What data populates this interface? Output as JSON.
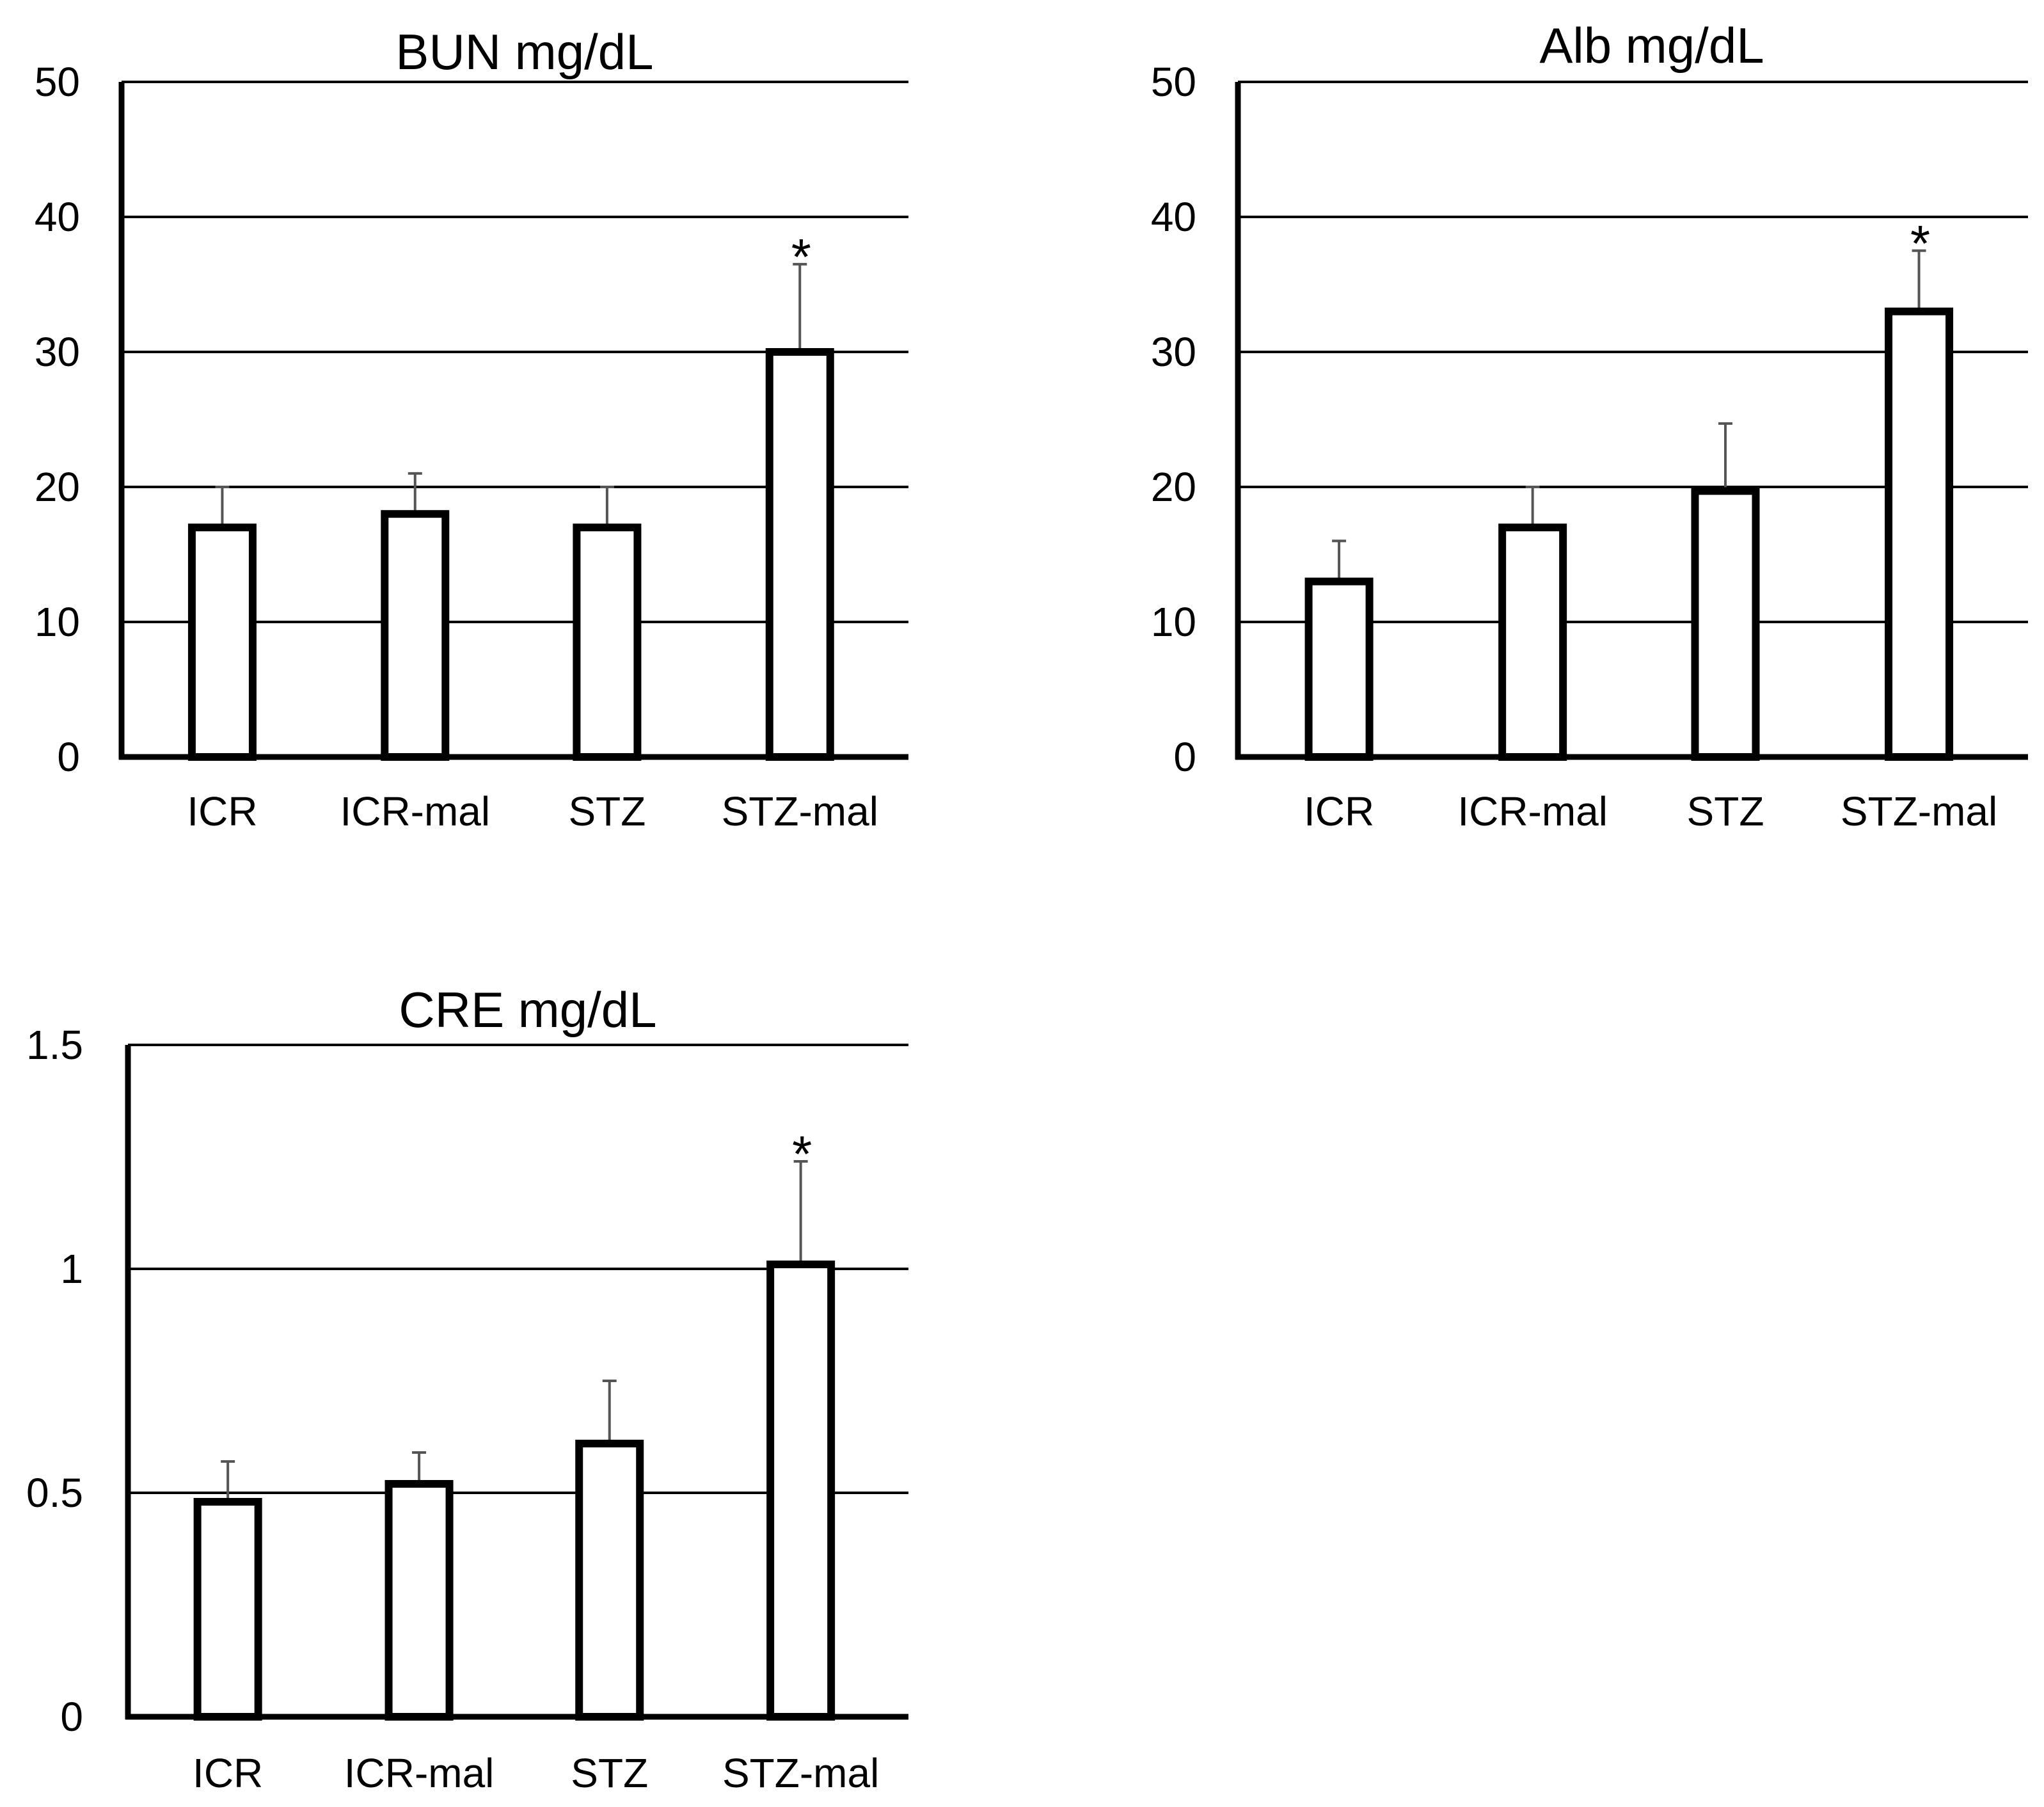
{
  "chart_data": [
    {
      "type": "bar",
      "title": "BUN mg/dL",
      "categories": [
        "ICR",
        "ICR-mal",
        "STZ",
        "STZ-mal"
      ],
      "values": [
        17,
        18,
        17,
        30
      ],
      "errors": [
        3,
        3,
        3,
        6.5
      ],
      "significance": [
        "",
        "",
        "",
        "*"
      ],
      "ylim": [
        0,
        50
      ],
      "yticks": [
        0,
        10,
        20,
        30,
        40,
        50
      ],
      "ytick_labels": [
        "0",
        "10",
        "20",
        "30",
        "40",
        "50"
      ],
      "grid": true,
      "xlabel": "",
      "ylabel": ""
    },
    {
      "type": "bar",
      "title": "Alb mg/dL",
      "categories": [
        "ICR",
        "ICR-mal",
        "STZ",
        "STZ-mal"
      ],
      "values": [
        13,
        17,
        19.7,
        33
      ],
      "errors": [
        3,
        3,
        5,
        4.5
      ],
      "significance": [
        "",
        "",
        "",
        "*"
      ],
      "ylim": [
        0,
        50
      ],
      "yticks": [
        0,
        10,
        20,
        30,
        40,
        50
      ],
      "ytick_labels": [
        "0",
        "10",
        "20",
        "30",
        "40",
        "50"
      ],
      "grid": true,
      "xlabel": "",
      "ylabel": ""
    },
    {
      "type": "bar",
      "title": "CRE mg/dL",
      "categories": [
        "ICR",
        "ICR-mal",
        "STZ",
        "STZ-mal"
      ],
      "values": [
        0.48,
        0.52,
        0.61,
        1.01
      ],
      "errors": [
        0.09,
        0.07,
        0.14,
        0.23
      ],
      "significance": [
        "",
        "",
        "",
        "*"
      ],
      "ylim": [
        0,
        1.5
      ],
      "yticks": [
        0,
        0.5,
        1,
        1.5
      ],
      "ytick_labels": [
        "0",
        "0.5",
        "1",
        "1.5"
      ],
      "grid": true,
      "xlabel": "",
      "ylabel": ""
    }
  ]
}
